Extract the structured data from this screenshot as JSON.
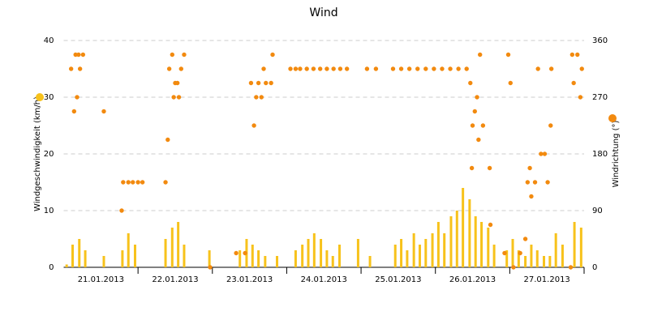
{
  "chart_data": {
    "type": "bar-scatter",
    "title": "Wind",
    "xlim": [
      0,
      7
    ],
    "xticks": [
      {
        "value": 0.5,
        "label": "21.01.2013"
      },
      {
        "value": 1.5,
        "label": "22.01.2013"
      },
      {
        "value": 2.5,
        "label": "23.01.2013"
      },
      {
        "value": 3.5,
        "label": "24.01.2013"
      },
      {
        "value": 4.5,
        "label": "25.01.2013"
      },
      {
        "value": 5.5,
        "label": "26.01.2013"
      },
      {
        "value": 6.5,
        "label": "27.01.2013"
      }
    ],
    "ylabel": "Windgeschwindigkeit (km/h)",
    "ylim": [
      0,
      40
    ],
    "yticks": [
      0,
      10,
      20,
      30,
      40
    ],
    "y2label": "Windrichtung (°)",
    "y2lim": [
      0,
      360
    ],
    "y2ticks": [
      0,
      90,
      180,
      270,
      360
    ],
    "grid": true,
    "series": [
      {
        "name": "Windgeschwindigkeit (km/h)",
        "color": "#f7c21b",
        "kind": "bar",
        "x": [
          0.04,
          0.12,
          0.21,
          0.29,
          0.37,
          0.46,
          0.54,
          0.62,
          0.71,
          0.79,
          0.87,
          0.96,
          1.04,
          1.12,
          1.21,
          1.29,
          1.37,
          1.46,
          1.54,
          1.62,
          1.71,
          1.79,
          1.87,
          1.96,
          2.04,
          2.12,
          2.21,
          2.29,
          2.37,
          2.46,
          2.54,
          2.62,
          2.71,
          2.79,
          2.87,
          2.96,
          3.04,
          3.12,
          3.21,
          3.29,
          3.37,
          3.46,
          3.54,
          3.62,
          3.71,
          3.79,
          3.87,
          3.96,
          4.04,
          4.12,
          4.21,
          4.29,
          4.37,
          4.46,
          4.54,
          4.62,
          4.71,
          4.79,
          4.87,
          4.96,
          5.04,
          5.12,
          5.21,
          5.29,
          5.37,
          5.46,
          5.54,
          5.62,
          5.71,
          5.79,
          5.87,
          5.96,
          6.04,
          6.12,
          6.21,
          6.29,
          6.37,
          6.46,
          6.54,
          6.62,
          6.71,
          6.79,
          6.87,
          6.96
        ],
        "values": [
          0.5,
          4,
          5,
          3,
          0,
          0,
          2,
          0,
          0,
          3,
          6,
          4,
          0,
          0,
          0,
          0,
          5,
          7,
          8,
          4,
          0,
          0,
          0,
          3,
          0,
          0,
          0,
          0,
          3,
          5,
          4,
          3,
          2,
          0,
          2,
          0,
          0,
          3,
          4,
          5,
          6,
          5,
          3,
          2,
          4,
          0,
          0,
          5,
          0,
          2,
          0,
          0,
          0,
          4,
          5,
          3,
          6,
          4,
          5,
          6,
          8,
          6,
          9,
          10,
          14,
          12,
          9,
          8,
          7,
          4,
          0,
          3,
          5,
          3,
          2,
          4,
          3,
          2,
          2,
          6,
          4,
          0,
          8,
          7
        ]
      },
      {
        "name": "Windrichtung (°)",
        "color": "#f28a0f",
        "kind": "scatter",
        "axis": "y2",
        "x": [
          0.1,
          0.14,
          0.16,
          0.18,
          0.2,
          0.22,
          0.26,
          0.54,
          0.78,
          0.8,
          0.87,
          0.93,
          1.0,
          1.06,
          1.37,
          1.4,
          1.42,
          1.46,
          1.48,
          1.5,
          1.53,
          1.55,
          1.58,
          1.62,
          1.97,
          2.32,
          2.44,
          2.52,
          2.56,
          2.59,
          2.62,
          2.66,
          2.69,
          2.72,
          2.79,
          2.81,
          3.05,
          3.12,
          3.18,
          3.27,
          3.36,
          3.45,
          3.54,
          3.63,
          3.72,
          3.81,
          4.08,
          4.2,
          4.43,
          4.54,
          4.65,
          4.76,
          4.87,
          4.98,
          5.09,
          5.2,
          5.31,
          5.42,
          5.47,
          5.49,
          5.5,
          5.53,
          5.56,
          5.58,
          5.6,
          5.64,
          5.73,
          5.74,
          5.93,
          5.98,
          6.01,
          6.05,
          6.14,
          6.21,
          6.24,
          6.27,
          6.29,
          6.34,
          6.38,
          6.42,
          6.47,
          6.51,
          6.55,
          6.56,
          6.82,
          6.84,
          6.86,
          6.91,
          6.95,
          6.97
        ],
        "values": [
          315,
          247.5,
          337.5,
          270,
          337.5,
          315,
          337.5,
          247.5,
          90,
          135,
          135,
          135,
          135,
          135,
          135,
          202.5,
          315,
          337.5,
          270,
          292.5,
          292.5,
          270,
          315,
          337.5,
          0,
          22.5,
          22.5,
          292.5,
          225,
          270,
          292.5,
          270,
          315,
          292.5,
          292.5,
          337.5,
          315,
          315,
          315,
          315,
          315,
          315,
          315,
          315,
          315,
          315,
          315,
          315,
          315,
          315,
          315,
          315,
          315,
          315,
          315,
          315,
          315,
          315,
          292.5,
          157.5,
          225,
          247.5,
          270,
          202.5,
          337.5,
          225,
          157.5,
          67.5,
          22.5,
          337.5,
          292.5,
          0,
          22.5,
          45,
          135,
          157.5,
          112.5,
          135,
          315,
          180,
          180,
          135,
          225,
          315,
          0,
          337.5,
          292.5,
          337.5,
          270,
          315
        ]
      }
    ]
  }
}
